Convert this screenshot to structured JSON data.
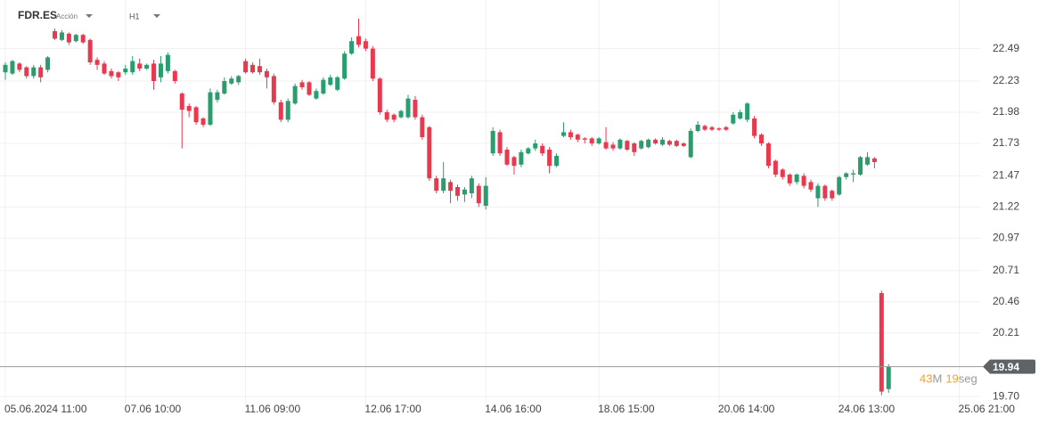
{
  "toolbar": {
    "symbol": "FDR.ES",
    "instrument_type": "Acción",
    "timeframe": "H1"
  },
  "chart_data": {
    "type": "candlestick",
    "categories": [
      "05.06.2024 11:00",
      null,
      null,
      null,
      null,
      null,
      null,
      null,
      null,
      null,
      null,
      null,
      null,
      null,
      null,
      null,
      null,
      "07.06 10:00",
      null,
      null,
      null,
      null,
      null,
      null,
      null,
      null,
      null,
      null,
      null,
      null,
      null,
      null,
      null,
      null,
      "11.06 09:00",
      null,
      null,
      null,
      null,
      null,
      null,
      null,
      null,
      null,
      null,
      null,
      null,
      null,
      null,
      null,
      null,
      "12.06 17:00",
      null,
      null,
      null,
      null,
      null,
      null,
      null,
      null,
      null,
      null,
      null,
      null,
      null,
      null,
      null,
      null,
      "14.06 16:00",
      null,
      null,
      null,
      null,
      null,
      null,
      null,
      null,
      null,
      null,
      null,
      null,
      null,
      null,
      null,
      "18.06 15:00",
      null,
      null,
      null,
      null,
      null,
      null,
      null,
      null,
      null,
      null,
      null,
      null,
      null,
      null,
      null,
      null,
      "20.06 14:00",
      null,
      null,
      null,
      null,
      null,
      null,
      null,
      null,
      null,
      null,
      null,
      null,
      null,
      null,
      null,
      null,
      "24.06 13:00",
      null,
      null,
      null,
      null,
      null,
      null,
      null,
      null,
      null,
      null,
      null,
      null,
      null,
      null,
      null,
      null,
      "25.06 21:00"
    ],
    "open": [
      22.3,
      22.29,
      22.37,
      22.34,
      22.27,
      22.34,
      22.32,
      22.63,
      22.56,
      22.61,
      22.55,
      22.6,
      22.56,
      22.4,
      22.37,
      22.31,
      22.3,
      22.3,
      22.3,
      22.37,
      22.33,
      22.37,
      22.26,
      22.31,
      22.31,
      22.13,
      22.03,
      22.02,
      21.93,
      21.88,
      22.08,
      22.13,
      22.21,
      22.22,
      22.39,
      22.36,
      22.35,
      22.31,
      22.27,
      22.06,
      21.92,
      22.05,
      22.22,
      22.22,
      22.09,
      22.13,
      22.2,
      22.16,
      22.25,
      22.45,
      22.59,
      22.55,
      22.49,
      22.25,
      21.98,
      21.96,
      21.94,
      21.94,
      22.08,
      21.94,
      21.86,
      21.45,
      21.35,
      21.42,
      21.38,
      21.32,
      21.33,
      21.39,
      21.23,
      21.65,
      21.82,
      21.68,
      21.62,
      21.56,
      21.65,
      21.69,
      21.71,
      21.68,
      21.55,
      21.79,
      21.82,
      21.8,
      21.77,
      21.77,
      21.73,
      21.74,
      21.72,
      21.69,
      21.75,
      21.73,
      21.69,
      21.7,
      21.76,
      21.72,
      21.75,
      21.75,
      21.73,
      21.62,
      21.83,
      21.87,
      21.86,
      21.85,
      21.86,
      21.89,
      21.93,
      21.92,
      21.93,
      21.8,
      21.73,
      21.59,
      21.52,
      21.48,
      21.42,
      21.47,
      21.42,
      21.29,
      21.39,
      21.35,
      21.32,
      21.46,
      21.48,
      21.48,
      21.56,
      21.61,
      20.53,
      19.76,
      null,
      null,
      null,
      null,
      null,
      null,
      null,
      null,
      null,
      null
    ],
    "high": [
      22.38,
      22.4,
      22.38,
      22.35,
      22.36,
      22.36,
      22.43,
      22.65,
      22.64,
      22.62,
      22.61,
      22.61,
      22.57,
      22.42,
      22.39,
      22.33,
      22.31,
      22.36,
      22.43,
      22.41,
      22.37,
      22.4,
      22.43,
      22.46,
      22.32,
      22.14,
      22.05,
      22.03,
      21.94,
      22.17,
      22.16,
      22.26,
      22.27,
      22.28,
      22.41,
      22.38,
      22.41,
      22.33,
      22.29,
      22.08,
      22.09,
      22.21,
      22.24,
      22.23,
      22.17,
      22.26,
      22.28,
      22.27,
      22.47,
      22.58,
      22.73,
      22.57,
      22.51,
      22.26,
      22.0,
      21.97,
      22.0,
      22.12,
      22.11,
      21.96,
      21.87,
      21.47,
      21.58,
      21.44,
      21.4,
      21.38,
      21.47,
      21.41,
      21.46,
      21.86,
      21.84,
      21.7,
      21.63,
      21.68,
      21.7,
      21.76,
      21.73,
      21.7,
      21.65,
      21.9,
      21.84,
      21.81,
      21.78,
      21.78,
      21.78,
      21.86,
      21.74,
      21.77,
      21.76,
      21.74,
      21.76,
      21.77,
      21.77,
      21.78,
      21.76,
      21.76,
      21.74,
      21.85,
      21.91,
      21.88,
      21.87,
      21.86,
      21.87,
      21.98,
      22.0,
      22.06,
      21.95,
      21.81,
      21.74,
      21.6,
      21.53,
      21.49,
      21.49,
      21.49,
      21.44,
      21.41,
      21.4,
      21.36,
      21.47,
      21.5,
      21.52,
      21.63,
      21.66,
      21.62,
      20.55,
      19.96,
      null,
      null,
      null,
      null,
      null,
      null,
      null,
      null,
      null,
      null
    ],
    "low": [
      22.24,
      22.28,
      22.3,
      22.25,
      22.25,
      22.22,
      22.3,
      22.56,
      22.55,
      22.52,
      22.54,
      22.53,
      22.36,
      22.32,
      22.28,
      22.25,
      22.23,
      22.28,
      22.28,
      22.31,
      22.32,
      22.16,
      22.22,
      22.29,
      22.21,
      21.69,
      21.94,
      21.88,
      21.86,
      21.87,
      22.06,
      22.12,
      22.2,
      22.2,
      22.29,
      22.29,
      22.28,
      22.17,
      22.04,
      21.9,
      21.9,
      22.04,
      22.16,
      22.11,
      22.08,
      22.12,
      22.19,
      22.15,
      22.24,
      22.44,
      22.5,
      22.47,
      22.23,
      21.96,
      21.9,
      21.9,
      21.93,
      21.93,
      21.92,
      21.76,
      21.43,
      21.33,
      21.33,
      21.25,
      21.27,
      21.26,
      21.29,
      21.22,
      21.2,
      21.63,
      21.63,
      21.55,
      21.48,
      21.54,
      21.64,
      21.67,
      21.63,
      21.49,
      21.54,
      21.78,
      21.76,
      21.74,
      21.73,
      21.71,
      21.72,
      21.68,
      21.67,
      21.68,
      21.67,
      21.63,
      21.68,
      21.69,
      21.72,
      21.71,
      21.71,
      21.7,
      21.7,
      21.61,
      21.82,
      21.83,
      21.83,
      21.83,
      21.83,
      21.88,
      21.92,
      21.9,
      21.77,
      21.71,
      21.53,
      21.46,
      21.44,
      21.39,
      21.4,
      21.37,
      21.34,
      21.22,
      21.27,
      21.27,
      21.31,
      21.44,
      21.42,
      21.47,
      21.55,
      21.53,
      19.71,
      19.73,
      null,
      null,
      null,
      null,
      null,
      null,
      null,
      null,
      null,
      null
    ],
    "close": [
      22.36,
      22.39,
      22.32,
      22.27,
      22.34,
      22.26,
      22.42,
      22.57,
      22.62,
      22.54,
      22.6,
      22.54,
      22.38,
      22.36,
      22.29,
      22.27,
      22.26,
      22.33,
      22.39,
      22.33,
      22.36,
      22.23,
      22.37,
      22.44,
      22.23,
      22.0,
      21.99,
      21.9,
      21.88,
      22.14,
      22.14,
      22.23,
      22.25,
      22.27,
      22.3,
      22.3,
      22.3,
      22.26,
      22.06,
      21.92,
      22.07,
      22.19,
      22.18,
      22.12,
      22.15,
      22.24,
      22.26,
      22.26,
      22.45,
      22.55,
      22.52,
      22.49,
      22.25,
      21.98,
      21.92,
      21.92,
      21.99,
      22.09,
      21.94,
      21.78,
      21.45,
      21.35,
      21.45,
      21.35,
      21.31,
      21.36,
      21.45,
      21.25,
      21.39,
      21.83,
      21.65,
      21.56,
      21.55,
      21.66,
      21.69,
      21.73,
      21.65,
      21.55,
      21.63,
      21.82,
      21.78,
      21.76,
      21.76,
      21.73,
      21.77,
      21.69,
      21.69,
      21.76,
      21.68,
      21.66,
      21.75,
      21.76,
      21.73,
      21.76,
      21.72,
      21.71,
      21.71,
      21.83,
      21.88,
      21.84,
      21.84,
      21.84,
      21.84,
      21.96,
      21.98,
      22.05,
      21.79,
      21.73,
      21.55,
      21.48,
      21.46,
      21.41,
      21.48,
      21.39,
      21.36,
      21.39,
      21.29,
      21.29,
      21.46,
      21.49,
      21.49,
      21.62,
      21.62,
      21.58,
      19.74,
      19.94,
      null,
      null,
      null,
      null,
      null,
      null,
      null,
      null,
      null,
      null
    ],
    "up_color": "#2a9d6f",
    "down_color": "#e8394f",
    "ylim": [
      19.63,
      22.88
    ],
    "yticks": [
      22.49,
      22.23,
      21.98,
      21.73,
      21.47,
      21.22,
      20.97,
      20.71,
      20.46,
      20.21,
      {
        "value": 19.7,
        "label": "19.70"
      }
    ],
    "grid": true,
    "last_price": 19.94,
    "countdown": {
      "minutes": 43,
      "minutes_unit": "M",
      "seconds": 19,
      "seconds_unit": "seg"
    }
  }
}
